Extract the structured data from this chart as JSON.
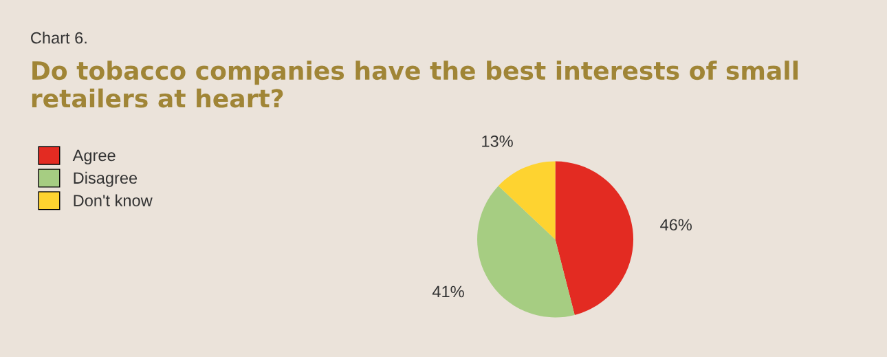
{
  "chart_data": {
    "type": "pie",
    "title": "Do tobacco companies have the best interests of small retailers at heart?",
    "annotations": [
      "Chart 6."
    ],
    "categories": [
      "Agree",
      "Disagree",
      "Don't know"
    ],
    "values": [
      46,
      41,
      13
    ],
    "colors": [
      "#e32b22",
      "#a6cd82",
      "#fed330"
    ],
    "value_labels": [
      "46%",
      "41%",
      "13%"
    ],
    "legend": "top left"
  }
}
